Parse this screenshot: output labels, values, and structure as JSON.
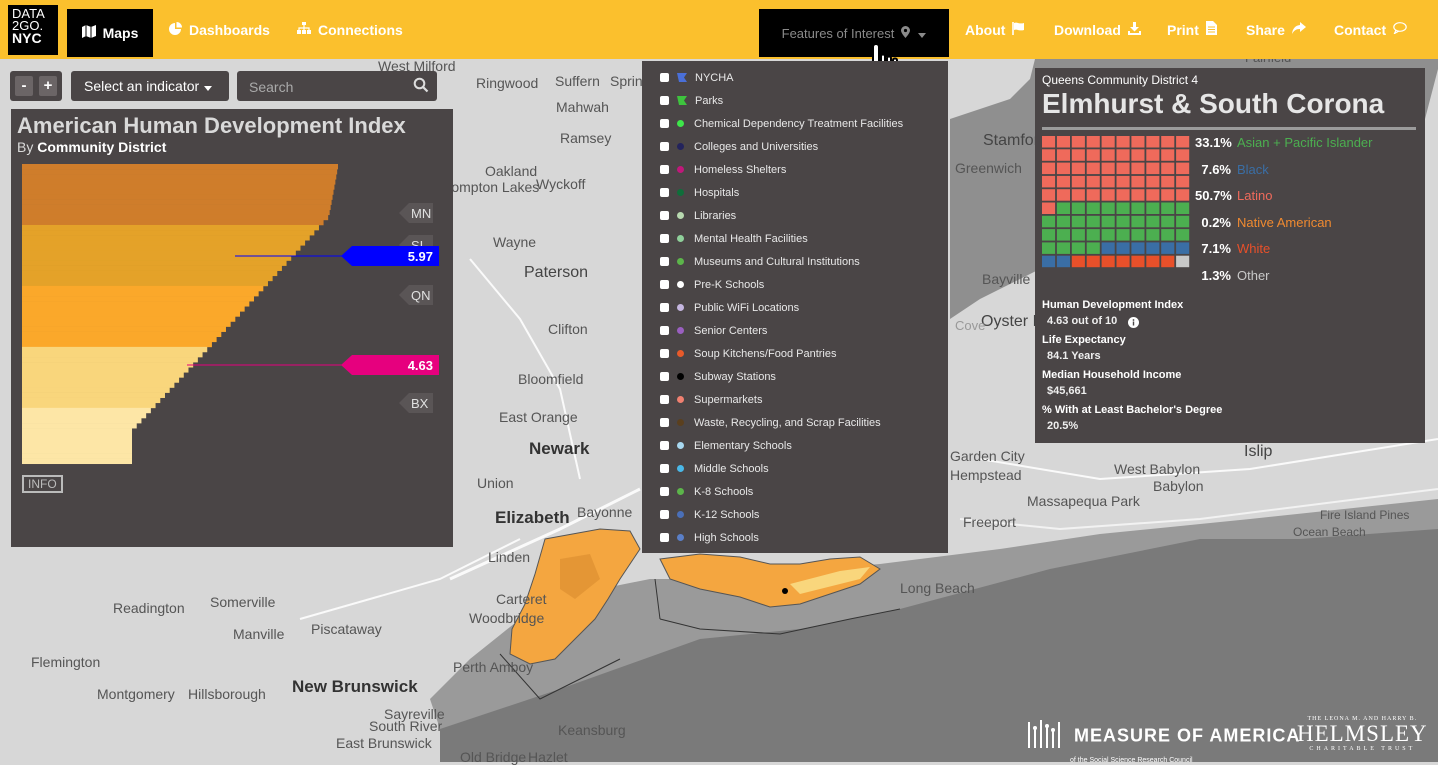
{
  "nav": {
    "logo_line1": "DATA",
    "logo_line2": "2GO.",
    "logo_line3": "NYC",
    "maps": "Maps",
    "dashboards": "Dashboards",
    "connections": "Connections",
    "features": "Features of Interest",
    "about": "About",
    "download": "Download",
    "print": "Print",
    "share": "Share",
    "contact": "Contact"
  },
  "controls": {
    "zoom_out": "-",
    "zoom_in": "+",
    "indicator": "Select an indicator",
    "search_placeholder": "Search"
  },
  "map_places": [
    "West Milford",
    "Ringwood",
    "Suffern",
    "Spring Valley",
    "Mahwah",
    "Ramsey",
    "Oakland",
    "Pompton Lakes",
    "Wyckoff",
    "Wayne",
    "Paterson",
    "Clifton",
    "Bloomfield",
    "East Orange",
    "Newark",
    "Union",
    "Elizabeth",
    "Bayonne",
    "Linden",
    "Carteret",
    "Woodbridge",
    "Perth Amboy",
    "Readington",
    "Somerville",
    "Manville",
    "Piscataway",
    "Flemington",
    "Montgomery",
    "Hillsborough",
    "New Brunswick",
    "Sayreville",
    "South River",
    "East Brunswick",
    "Old Bridge",
    "Hazlet",
    "Keansburg",
    "Stamford",
    "Greenwich",
    "Bayville",
    "Oyster Bay",
    "Islip",
    "West Babylon",
    "Babylon",
    "Massapequa Park",
    "Freeport",
    "Long Beach",
    "Fire Island Pines",
    "Ocean Beach",
    "Hempstead",
    "Garden City",
    "Cove",
    "Fairfield"
  ],
  "hdi": {
    "title": "American Human Development Index",
    "subtitle_prefix": "By",
    "subtitle_bold": "Community District",
    "info": "INFO",
    "borough_labels": [
      "MN",
      "SI",
      "QN",
      "BX"
    ],
    "markers": [
      {
        "value": "5.97",
        "color": "#0000ff"
      },
      {
        "value": "4.63",
        "color": "#e6007e"
      }
    ],
    "band_colors": [
      "#cf7d2b",
      "#e4a229",
      "#fba82a",
      "#f9d67c",
      "#fde6a6"
    ]
  },
  "features": {
    "items": [
      {
        "label": "NYCHA",
        "color": "#4a6fd8",
        "icon": "flag-icon"
      },
      {
        "label": "Parks",
        "color": "#3ec33e",
        "icon": "flag-icon"
      },
      {
        "label": "Chemical Dependency Treatment Facilities",
        "color": "#3ee64a"
      },
      {
        "label": "Colleges and Universities",
        "color": "#23235c"
      },
      {
        "label": "Homeless Shelters",
        "color": "#c0187a"
      },
      {
        "label": "Hospitals",
        "color": "#0f6e3a"
      },
      {
        "label": "Libraries",
        "color": "#b8d9b0"
      },
      {
        "label": "Mental Health Facilities",
        "color": "#8fd09a"
      },
      {
        "label": "Museums and Cultural Institutions",
        "color": "#5cb54a"
      },
      {
        "label": "Pre-K Schools",
        "color": "#ffffff"
      },
      {
        "label": "Public WiFi Locations",
        "color": "#c5b6e0"
      },
      {
        "label": "Senior Centers",
        "color": "#9a5fc0"
      },
      {
        "label": "Soup Kitchens/Food Pantries",
        "color": "#e85a2a"
      },
      {
        "label": "Subway Stations",
        "color": "#000000"
      },
      {
        "label": "Supermarkets",
        "color": "#f08070"
      },
      {
        "label": "Waste, Recycling, and Scrap Facilities",
        "color": "#5a3f1e"
      },
      {
        "label": "Elementary Schools",
        "color": "#a8d8f0"
      },
      {
        "label": "Middle Schools",
        "color": "#4ab8e8"
      },
      {
        "label": "K-8 Schools",
        "color": "#5cb54a"
      },
      {
        "label": "K-12 Schools",
        "color": "#4a6fb8"
      },
      {
        "label": "High Schools",
        "color": "#5a7fc8"
      }
    ]
  },
  "district": {
    "district_label": "Queens Community District 4",
    "name": "Elmhurst & South Corona",
    "races": [
      {
        "pct": "33.1%",
        "label": "Asian + Pacific Islander",
        "color": "#4caf50"
      },
      {
        "pct": "7.6%",
        "label": "Black",
        "color": "#3a6ea5"
      },
      {
        "pct": "50.7%",
        "label": "Latino",
        "color": "#ef6a5b"
      },
      {
        "pct": "0.2%",
        "label": "Native American",
        "color": "#f08a30"
      },
      {
        "pct": "7.1%",
        "label": "White",
        "color": "#e8502a"
      },
      {
        "pct": "1.3%",
        "label": "Other",
        "color": "#c8c8c8"
      }
    ],
    "waffle_counts": {
      "latino": 51,
      "asian": 33,
      "black": 8,
      "white": 7,
      "other": 1
    },
    "stats": [
      {
        "label": "Human Development Index",
        "value": "4.63 out of 10"
      },
      {
        "label": "Life Expectancy",
        "value": "84.1 Years"
      },
      {
        "label": "Median Household Income",
        "value": "$45,661"
      },
      {
        "label": "% With at Least Bachelor's Degree",
        "value": "20.5%"
      }
    ]
  },
  "footer": {
    "moa": "MEASURE OF AMERICA",
    "moa_sub": "of the Social Science Research Council",
    "helmsley_top": "THE LEONA M. AND HARRY B.",
    "helmsley": "HELMSLEY",
    "helmsley_sub": "CHARITABLE TRUST"
  }
}
